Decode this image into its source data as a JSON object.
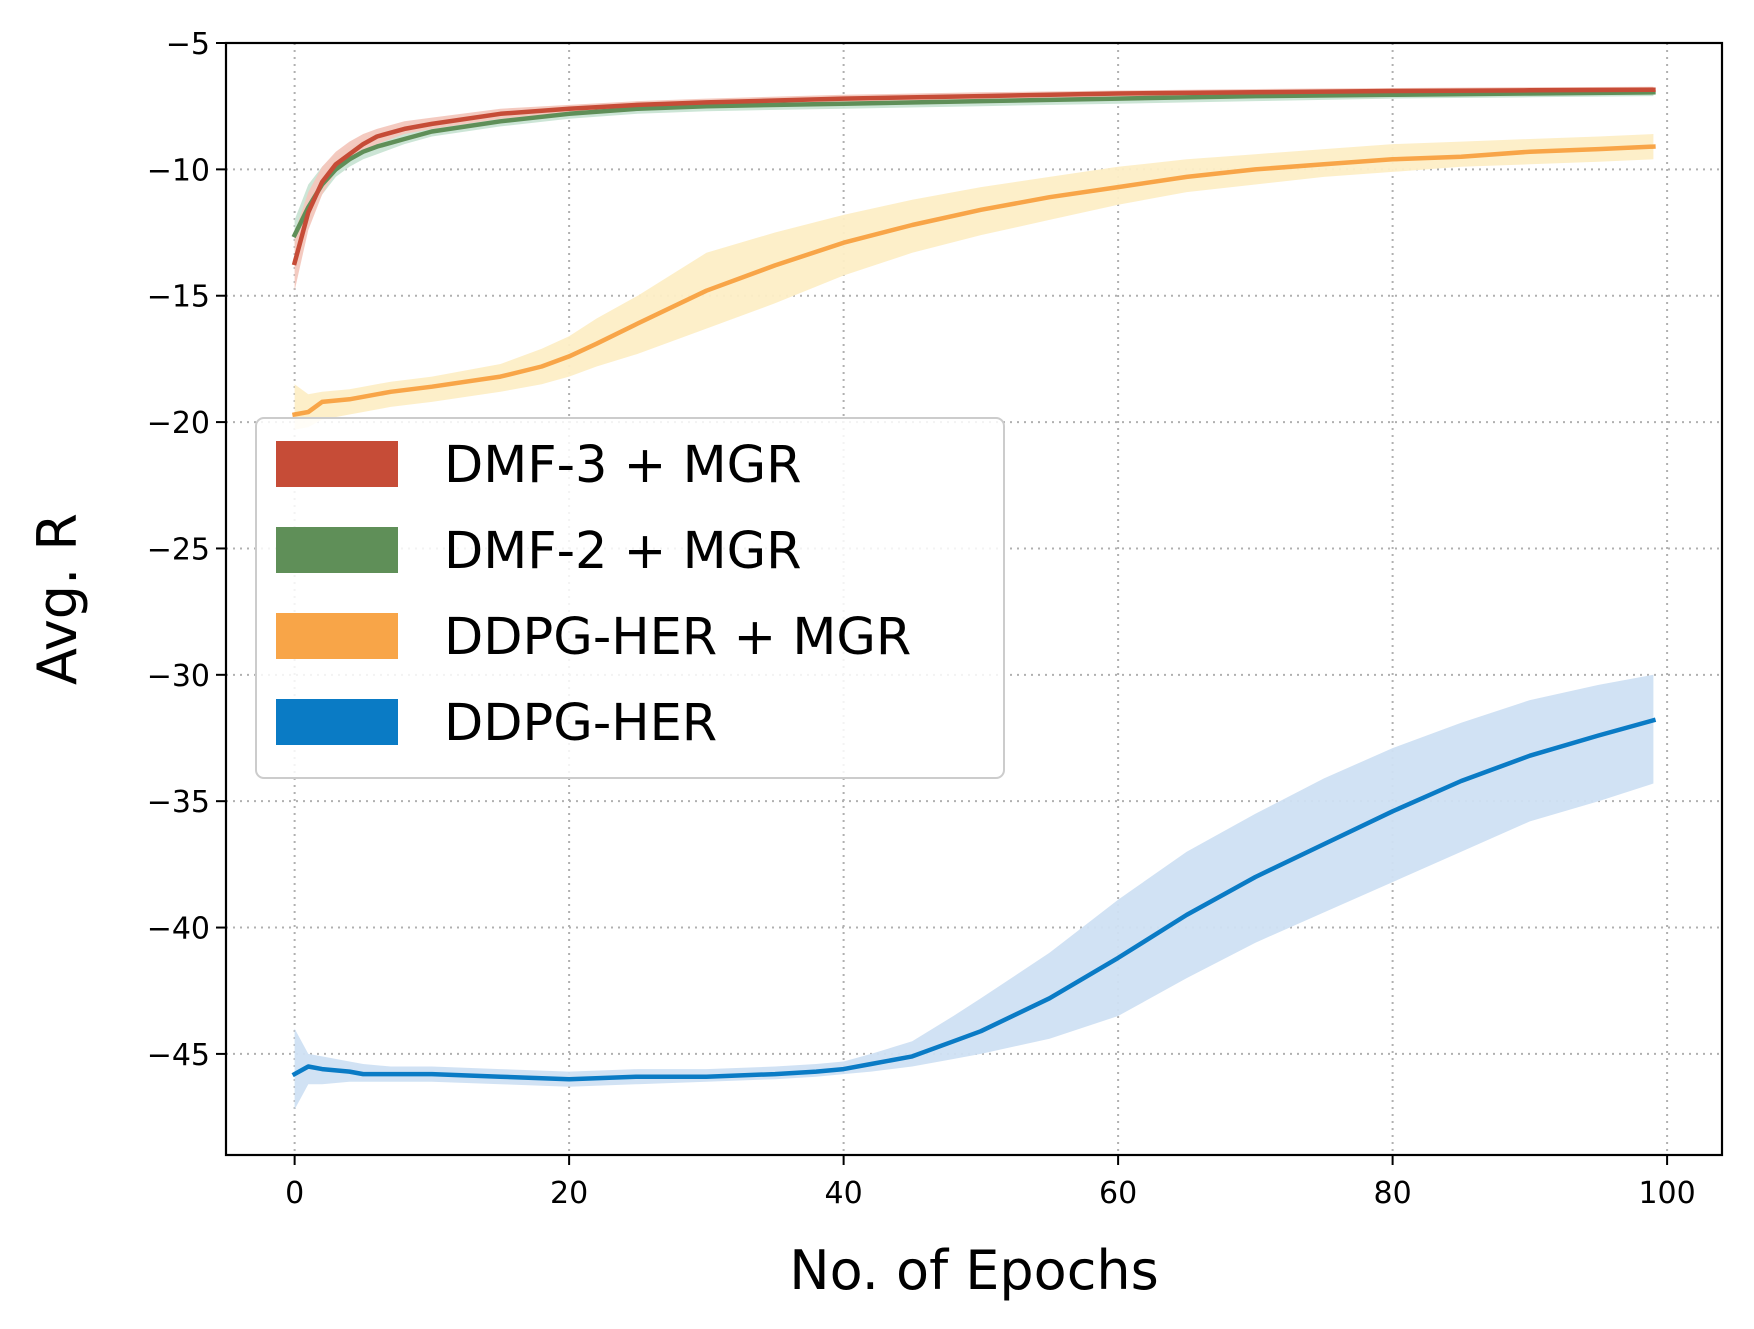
{
  "chart_data": {
    "type": "line",
    "title": "",
    "xlabel": "No. of Epochs",
    "ylabel": "Avg. R",
    "xlim": [
      -5,
      104
    ],
    "ylim": [
      -49,
      -5
    ],
    "xticks": [
      0,
      20,
      40,
      60,
      80,
      100
    ],
    "yticks": [
      -5,
      -10,
      -15,
      -20,
      -25,
      -30,
      -35,
      -40,
      -45
    ],
    "xtick_labels": [
      "0",
      "20",
      "40",
      "60",
      "80",
      "100"
    ],
    "ytick_labels": [
      "−5",
      "−10",
      "−15",
      "−20",
      "−25",
      "−30",
      "−35",
      "−40",
      "−45"
    ],
    "grid": true,
    "legend_position": "center-left",
    "series": [
      {
        "name": "DDPG-HER",
        "color": "#0a7bc5",
        "band_color": "#cfe0f3",
        "x": [
          0,
          1,
          2,
          4,
          5,
          7,
          10,
          15,
          20,
          25,
          30,
          35,
          38,
          40,
          42,
          45,
          48,
          50,
          55,
          60,
          65,
          70,
          75,
          80,
          85,
          90,
          95,
          99
        ],
        "y": [
          -45.8,
          -45.5,
          -45.6,
          -45.7,
          -45.8,
          -45.8,
          -45.8,
          -45.9,
          -46.0,
          -45.9,
          -45.9,
          -45.8,
          -45.7,
          -45.6,
          -45.4,
          -45.1,
          -44.5,
          -44.1,
          -42.8,
          -41.2,
          -39.5,
          -38.0,
          -36.7,
          -35.4,
          -34.2,
          -33.2,
          -32.4,
          -31.8
        ],
        "lower": [
          -47.2,
          -46.2,
          -46.2,
          -46.1,
          -46.1,
          -46.1,
          -46.1,
          -46.2,
          -46.3,
          -46.2,
          -46.1,
          -46.0,
          -45.9,
          -45.8,
          -45.7,
          -45.5,
          -45.2,
          -45.0,
          -44.4,
          -43.5,
          -42.0,
          -40.6,
          -39.4,
          -38.2,
          -37.0,
          -35.8,
          -35.0,
          -34.3
        ],
        "upper": [
          -44.0,
          -45.0,
          -45.1,
          -45.3,
          -45.4,
          -45.5,
          -45.5,
          -45.6,
          -45.7,
          -45.6,
          -45.6,
          -45.5,
          -45.4,
          -45.3,
          -45.0,
          -44.5,
          -43.5,
          -42.8,
          -41.0,
          -38.9,
          -37.0,
          -35.5,
          -34.1,
          -32.9,
          -31.9,
          -31.0,
          -30.4,
          -30.0
        ]
      },
      {
        "name": "DDPG-HER + MGR",
        "color": "#f8a548",
        "band_color": "#fdeec6",
        "x": [
          0,
          1,
          2,
          4,
          5,
          7,
          10,
          15,
          18,
          20,
          22,
          25,
          30,
          35,
          40,
          45,
          50,
          55,
          60,
          65,
          70,
          75,
          80,
          85,
          90,
          95,
          99
        ],
        "y": [
          -19.7,
          -19.6,
          -19.2,
          -19.1,
          -19.0,
          -18.8,
          -18.6,
          -18.2,
          -17.8,
          -17.4,
          -16.9,
          -16.1,
          -14.8,
          -13.8,
          -12.9,
          -12.2,
          -11.6,
          -11.1,
          -10.7,
          -10.3,
          -10.0,
          -9.8,
          -9.6,
          -9.5,
          -9.3,
          -9.2,
          -9.1
        ],
        "lower": [
          -20.3,
          -20.2,
          -19.9,
          -19.7,
          -19.6,
          -19.4,
          -19.2,
          -18.8,
          -18.5,
          -18.2,
          -17.8,
          -17.3,
          -16.3,
          -15.3,
          -14.2,
          -13.3,
          -12.6,
          -12.0,
          -11.4,
          -10.9,
          -10.6,
          -10.3,
          -10.1,
          -9.9,
          -9.8,
          -9.7,
          -9.6
        ],
        "upper": [
          -18.5,
          -18.9,
          -18.8,
          -18.7,
          -18.6,
          -18.4,
          -18.2,
          -17.7,
          -17.1,
          -16.6,
          -15.9,
          -15.0,
          -13.3,
          -12.5,
          -11.8,
          -11.2,
          -10.7,
          -10.3,
          -9.9,
          -9.6,
          -9.4,
          -9.2,
          -9.0,
          -8.9,
          -8.8,
          -8.7,
          -8.6
        ]
      },
      {
        "name": "DMF-2 + MGR",
        "color": "#5f8f58",
        "band_color": "#c9e4d4",
        "x": [
          0,
          1,
          2,
          3,
          4,
          5,
          6,
          8,
          10,
          15,
          20,
          25,
          30,
          40,
          50,
          60,
          70,
          80,
          90,
          99
        ],
        "y": [
          -12.6,
          -11.5,
          -10.6,
          -10.0,
          -9.6,
          -9.3,
          -9.1,
          -8.8,
          -8.5,
          -8.1,
          -7.8,
          -7.6,
          -7.5,
          -7.4,
          -7.3,
          -7.2,
          -7.1,
          -7.05,
          -7.0,
          -6.95
        ],
        "lower": [
          -13.2,
          -12.1,
          -11.0,
          -10.3,
          -9.9,
          -9.6,
          -9.4,
          -9.0,
          -8.7,
          -8.3,
          -8.0,
          -7.8,
          -7.7,
          -7.6,
          -7.5,
          -7.4,
          -7.3,
          -7.2,
          -7.15,
          -7.1
        ],
        "upper": [
          -12.0,
          -10.6,
          -9.9,
          -9.4,
          -9.1,
          -8.9,
          -8.7,
          -8.4,
          -8.2,
          -7.9,
          -7.6,
          -7.45,
          -7.35,
          -7.25,
          -7.15,
          -7.05,
          -6.98,
          -6.92,
          -6.88,
          -6.85
        ]
      },
      {
        "name": "DMF-3 + MGR",
        "color": "#c64c37",
        "band_color": "#f3c7bd",
        "x": [
          0,
          1,
          2,
          3,
          4,
          5,
          6,
          8,
          10,
          15,
          20,
          25,
          30,
          40,
          50,
          60,
          70,
          80,
          90,
          99
        ],
        "y": [
          -13.7,
          -11.7,
          -10.5,
          -9.8,
          -9.4,
          -9.0,
          -8.7,
          -8.4,
          -8.2,
          -7.8,
          -7.6,
          -7.45,
          -7.35,
          -7.2,
          -7.1,
          -7.0,
          -6.95,
          -6.9,
          -6.87,
          -6.85
        ],
        "lower": [
          -14.8,
          -12.4,
          -11.0,
          -10.1,
          -9.7,
          -9.3,
          -9.0,
          -8.6,
          -8.4,
          -8.0,
          -7.75,
          -7.6,
          -7.5,
          -7.35,
          -7.25,
          -7.15,
          -7.08,
          -7.02,
          -6.98,
          -6.95
        ],
        "upper": [
          -12.5,
          -10.9,
          -9.9,
          -9.3,
          -8.9,
          -8.6,
          -8.4,
          -8.1,
          -7.95,
          -7.6,
          -7.45,
          -7.3,
          -7.2,
          -7.05,
          -6.95,
          -6.88,
          -6.82,
          -6.78,
          -6.75,
          -6.73
        ]
      }
    ],
    "legend": [
      {
        "label": "DMF-3 + MGR",
        "color": "#c64c37"
      },
      {
        "label": "DMF-2 + MGR",
        "color": "#5f8f58"
      },
      {
        "label": "DDPG-HER + MGR",
        "color": "#f8a548"
      },
      {
        "label": "DDPG-HER",
        "color": "#0a7bc5"
      }
    ]
  }
}
